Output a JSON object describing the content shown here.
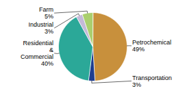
{
  "chart_data": {
    "type": "pie",
    "categories": [
      "Petrochemical\n49%",
      "Transportation\n3%",
      "Residential\n&\nCommercial\n40%",
      "Industrial\n3%",
      "Farm\n5%"
    ],
    "values": [
      49,
      3,
      40,
      3,
      5
    ],
    "colors": [
      "#C8903C",
      "#1E3D8F",
      "#2BA898",
      "#C4BAD8",
      "#AACF6E"
    ]
  }
}
